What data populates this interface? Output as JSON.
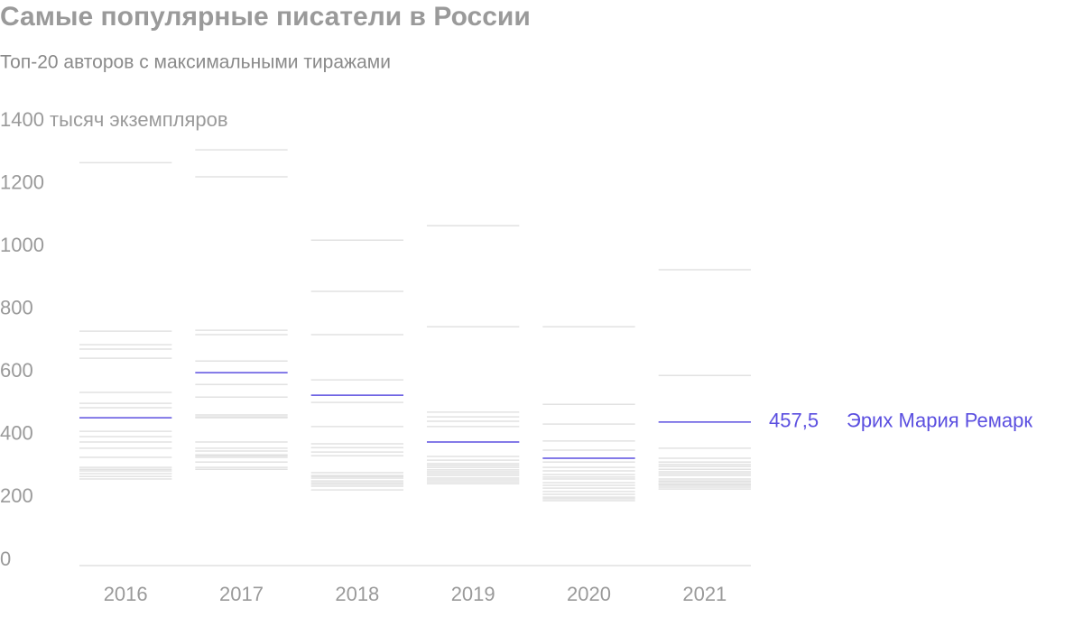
{
  "chart_data": {
    "type": "strip",
    "title": "Самые популярные писатели в России",
    "subtitle": "Топ-20 авторов с максимальными тиражами",
    "categories": [
      "2016",
      "2017",
      "2018",
      "2019",
      "2020",
      "2021"
    ],
    "others_color": "#e2e2e2",
    "others": [
      [
        1284,
        747,
        704,
        690,
        661,
        552,
        517,
        503,
        428,
        411,
        394,
        374,
        345,
        307,
        302,
        284,
        276,
        313,
        293
      ],
      [
        1325,
        1239,
        750,
        736,
        652,
        577,
        537,
        480,
        474,
        394,
        374,
        365,
        353,
        345,
        330,
        313,
        307,
        471,
        350
      ],
      [
        1037,
        874,
        736,
        592,
        520,
        443,
        388,
        376,
        362,
        350,
        296,
        287,
        279,
        264,
        259,
        253,
        241,
        270,
        284
      ],
      [
        1083,
        761,
        489,
        474,
        460,
        443,
        336,
        325,
        319,
        313,
        305,
        299,
        279,
        273,
        267,
        261,
        287,
        293,
        348
      ],
      [
        761,
        514,
        451,
        397,
        368,
        330,
        302,
        290,
        276,
        264,
        256,
        247,
        236,
        227,
        218,
        213,
        207,
        313,
        282
      ],
      [
        943,
        606,
        374,
        342,
        330,
        316,
        307,
        299,
        287,
        276,
        267,
        261,
        256,
        250,
        244,
        259,
        270,
        293,
        322
      ]
    ],
    "series": [
      {
        "name": "Эрих Мария Ремарк",
        "color": "#5b4fe0",
        "values": [
          471,
          615,
          543,
          394,
          342,
          457.5
        ],
        "value_labels": [
          null,
          null,
          null,
          null,
          null,
          "457,5"
        ]
      }
    ],
    "ylim": [
      0,
      1400
    ],
    "yticks": [
      0,
      200,
      400,
      600,
      800,
      1000,
      1200,
      {
        "value": 1400,
        "label": "1400 тысяч экземпляров"
      }
    ]
  }
}
